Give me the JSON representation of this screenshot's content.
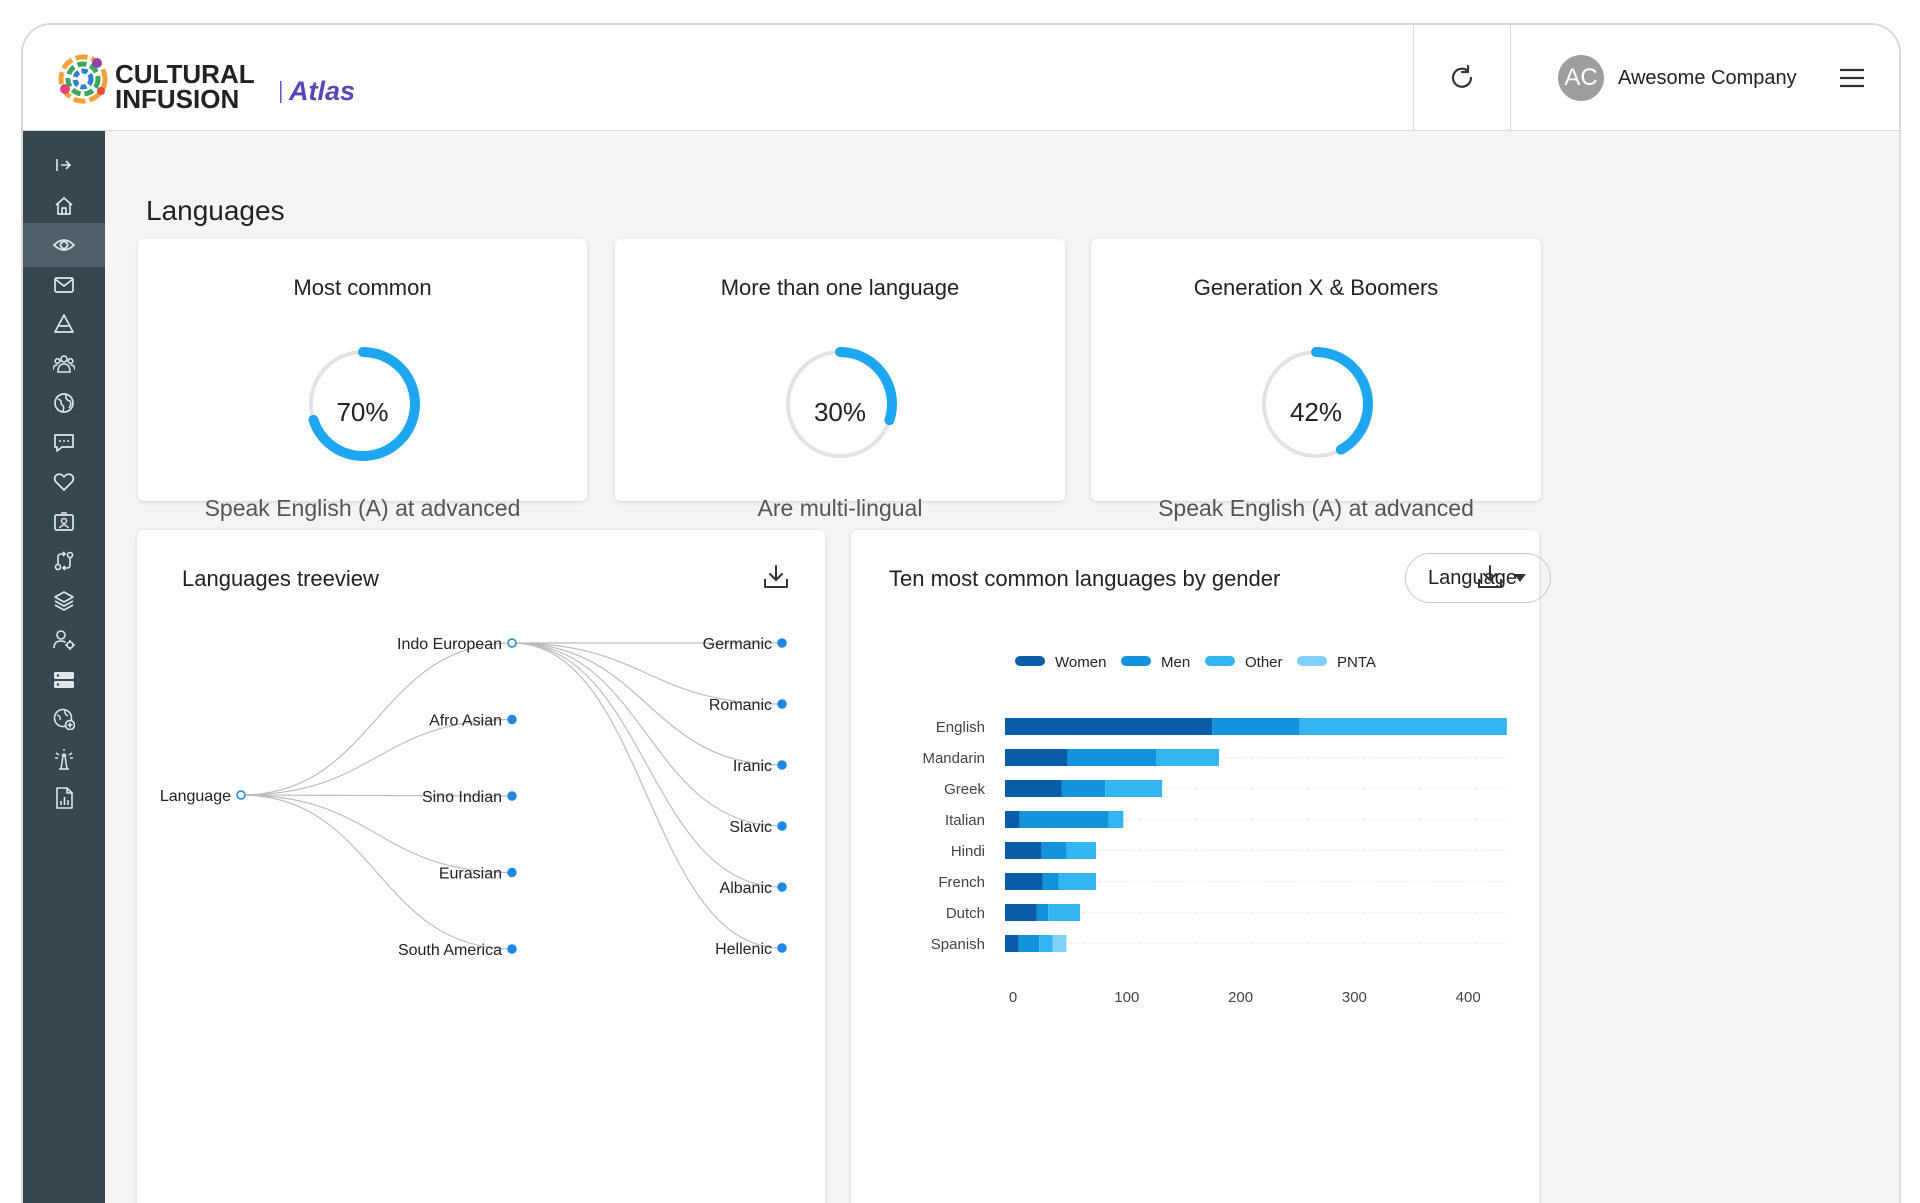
{
  "brand": {
    "line1": "CULTURAL",
    "line2": "INFUSION",
    "product": "Atlas"
  },
  "header": {
    "user_initials": "AC",
    "company": "Awesome Company"
  },
  "sidebar": {
    "icons": [
      "expand-icon",
      "home-icon",
      "eye-icon",
      "mail-icon",
      "triangle-icon",
      "people-icon",
      "globe-icon",
      "chat-icon",
      "heart-icon",
      "badge-icon",
      "routes-icon",
      "layers-icon",
      "user-settings-icon",
      "storage-icon",
      "globe-plus-icon",
      "beacon-icon",
      "report-icon"
    ],
    "active_index": 2
  },
  "page": {
    "title": "Languages"
  },
  "kpis": [
    {
      "title": "Most common",
      "value_text": "70%",
      "value": 0.7,
      "subtitle": "Speak English (A) at advanced"
    },
    {
      "title": "More than one language",
      "value_text": "30%",
      "value": 0.3,
      "subtitle": "Are multi-lingual"
    },
    {
      "title": "Generation X & Boomers",
      "value_text": "42%",
      "value": 0.42,
      "subtitle": "Speak English (A) at advanced"
    }
  ],
  "colors": {
    "accent": "#1ea7f0",
    "ring_track": "#e3e3e3",
    "sidebar": "#37474f",
    "tree_node": "#1e88e5"
  },
  "treeview": {
    "title": "Languages treeview",
    "root": "Language",
    "groups": [
      "Indo European",
      "Afro Asian",
      "Sino Indian",
      "Eurasian",
      "South America"
    ],
    "expanded_group": "Indo European",
    "children": [
      "Germanic",
      "Romanic",
      "Iranic",
      "Slavic",
      "Albanic",
      "Hellenic"
    ]
  },
  "gender_chart": {
    "title": "Ten most common languages by gender",
    "dropdown": "Language"
  },
  "chart_data": {
    "type": "bar",
    "orientation": "horizontal",
    "stacked": true,
    "title": "Ten most common languages by gender",
    "categories": [
      "English",
      "Mandarin",
      "Greek",
      "Italian",
      "Hindi",
      "French",
      "Dutch",
      "Spanish"
    ],
    "series": [
      {
        "name": "Women",
        "color": "#0a5ea8",
        "values": [
          182,
          55,
          50,
          13,
          32,
          33,
          28,
          12
        ]
      },
      {
        "name": "Men",
        "color": "#1592dc",
        "values": [
          77,
          78,
          38,
          78,
          22,
          14,
          10,
          18
        ]
      },
      {
        "name": "Other",
        "color": "#33b5f2",
        "values": [
          182,
          55,
          50,
          13,
          26,
          33,
          28,
          12
        ]
      },
      {
        "name": "PNTA",
        "color": "#80d0fa",
        "values": [
          0,
          0,
          0,
          0,
          0,
          0,
          0,
          12
        ]
      }
    ],
    "xticks": [
      0,
      100,
      200,
      300,
      400
    ],
    "xlim": [
      0,
      440
    ],
    "grid": true,
    "legend": "top-center"
  }
}
